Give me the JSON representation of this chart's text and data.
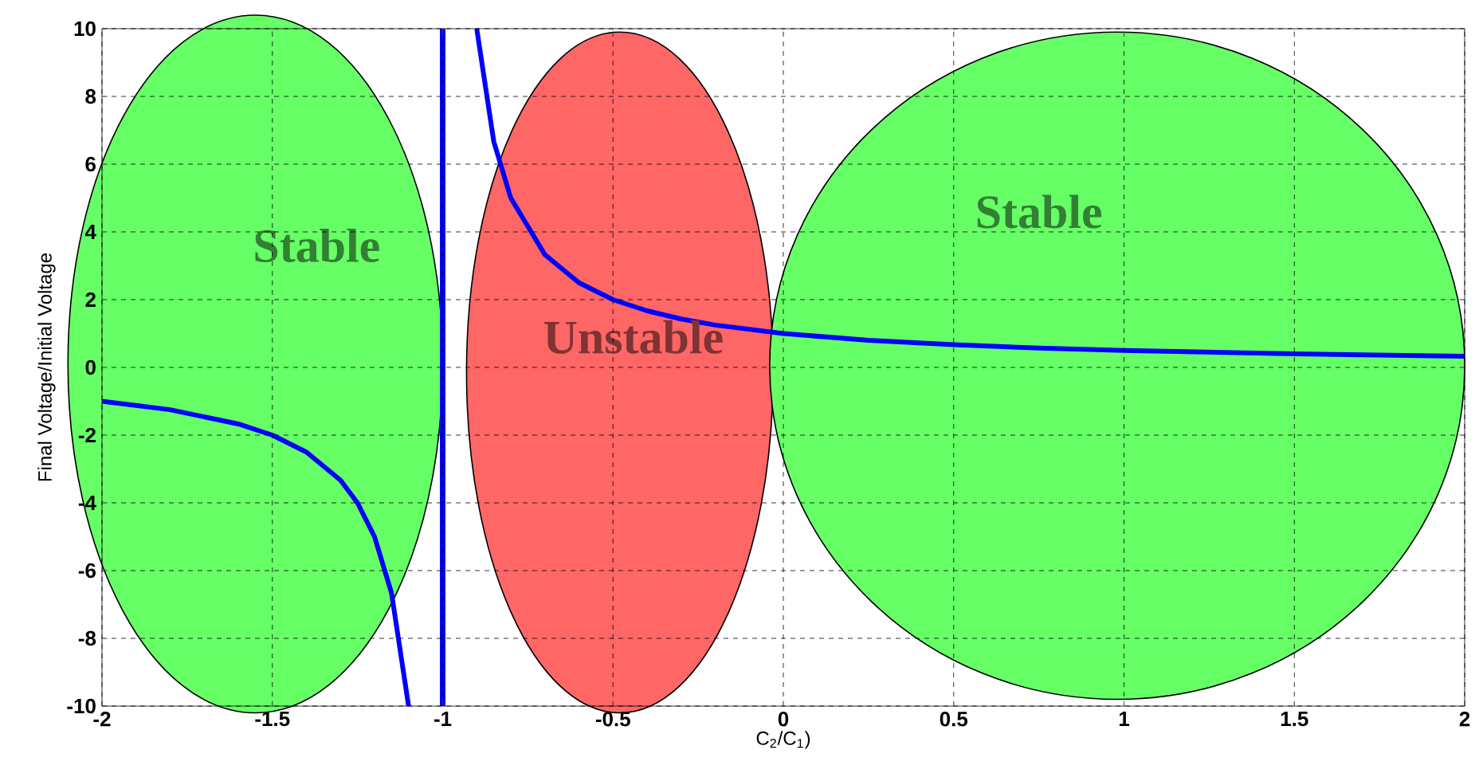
{
  "chart_data": {
    "type": "line",
    "xlabel": "C$_{2}$/C$_{1}$)",
    "ylabel": "Final Voltage/Initial Voltage",
    "x": [
      -2,
      -1.8,
      -1.6,
      -1.5,
      -1.4,
      -1.3,
      -1.25,
      -1.2,
      -1.15,
      -1.1,
      -1,
      -0.9,
      -0.85,
      -0.8,
      -0.7,
      -0.6,
      -0.5,
      -0.4,
      -0.3,
      -0.2,
      0,
      0.25,
      0.5,
      0.75,
      1,
      1.5,
      2
    ],
    "series": [
      {
        "color": "#0000ff",
        "values": [
          -1,
          -1.25,
          -1.67,
          -2,
          -2.5,
          -3.33,
          -4,
          -5,
          -6.67,
          -10,
          null,
          10,
          6.67,
          5,
          3.33,
          2.5,
          2,
          1.67,
          1.43,
          1.25,
          1,
          0.8,
          0.67,
          0.57,
          0.5,
          0.4,
          0.33
        ]
      }
    ],
    "xlim": [
      -2,
      2
    ],
    "ylim": [
      -10,
      10
    ],
    "xticks": [
      -2,
      -1.5,
      -1,
      -0.5,
      0,
      0.5,
      1,
      1.5,
      2
    ],
    "yticks": [
      -10,
      -8,
      -6,
      -4,
      -2,
      0,
      2,
      4,
      6,
      8,
      10
    ],
    "grid": true,
    "marker": "none",
    "line_style": "solid",
    "ref_lines": [
      {
        "axis": "x",
        "value": -1,
        "color": "#0000ff"
      }
    ],
    "annotations": [
      "Stable",
      "Unstable",
      "Stable"
    ]
  }
}
